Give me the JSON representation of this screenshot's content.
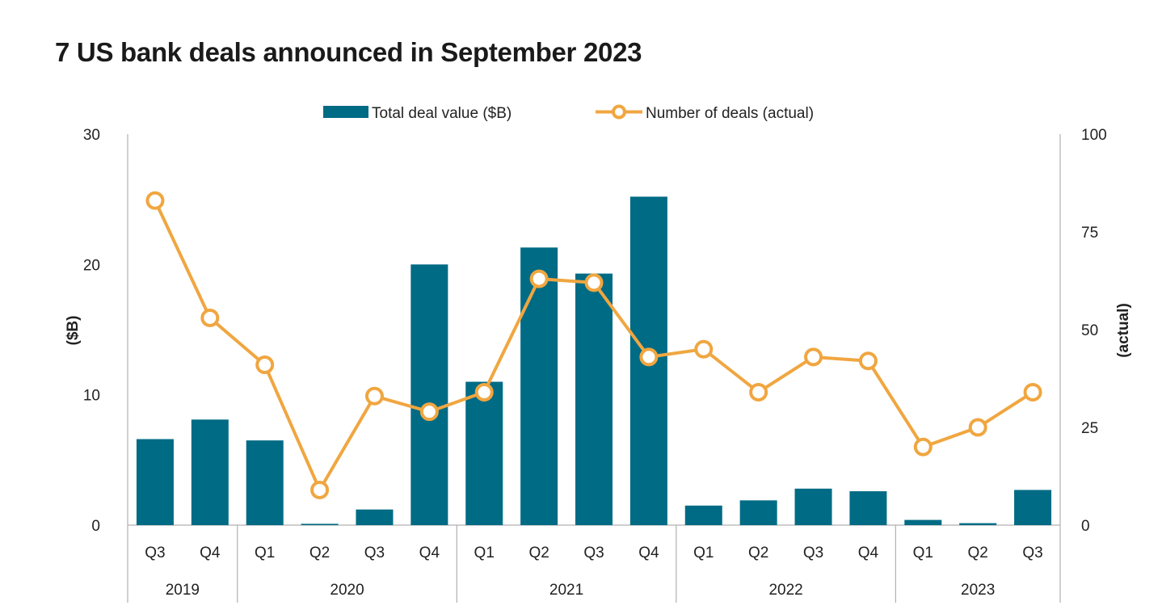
{
  "chart_data": {
    "type": "bar",
    "title": "7 US bank deals announced in September 2023",
    "categories": [
      "Q3",
      "Q4",
      "Q1",
      "Q2",
      "Q3",
      "Q4",
      "Q1",
      "Q2",
      "Q3",
      "Q4",
      "Q1",
      "Q2",
      "Q3",
      "Q4",
      "Q1",
      "Q2",
      "Q3"
    ],
    "groups": [
      {
        "label": "2019",
        "count": 2
      },
      {
        "label": "2020",
        "count": 4
      },
      {
        "label": "2021",
        "count": 4
      },
      {
        "label": "2022",
        "count": 4
      },
      {
        "label": "2023",
        "count": 3
      }
    ],
    "series": [
      {
        "name": "Total deal value ($B)",
        "type": "bar",
        "axis": "left",
        "color": "#006b85",
        "values": [
          6.6,
          8.1,
          6.5,
          0.1,
          1.2,
          20.0,
          11.0,
          21.3,
          19.3,
          25.2,
          1.5,
          1.9,
          2.8,
          2.6,
          0.4,
          0.15,
          2.7
        ]
      },
      {
        "name": "Number of deals (actual)",
        "type": "line",
        "axis": "right",
        "color": "#f0a640",
        "values": [
          83,
          53,
          41,
          9,
          33,
          29,
          34,
          63,
          62,
          43,
          45,
          34,
          43,
          42,
          20,
          25,
          34
        ]
      }
    ],
    "ylabel": "($B)",
    "y2label": "(actual)",
    "ylim": [
      0,
      30
    ],
    "y2lim": [
      0,
      100
    ],
    "yticks": [
      "0",
      "10",
      "20",
      "30"
    ],
    "y2ticks": [
      "0",
      "25",
      "50",
      "75",
      "100"
    ],
    "legend_position": "top"
  }
}
